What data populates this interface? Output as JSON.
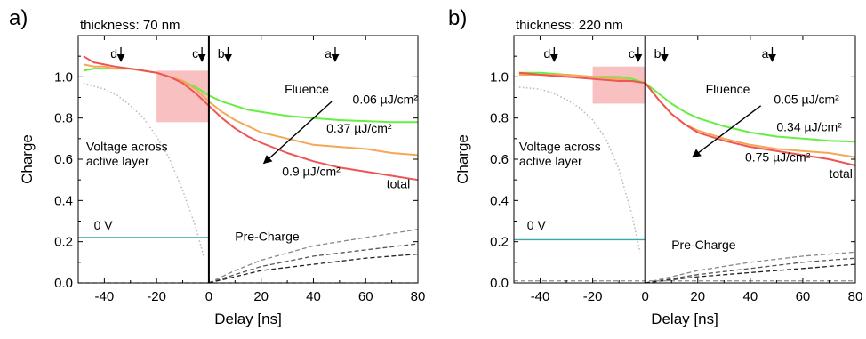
{
  "chart_data": [
    {
      "type": "line",
      "panel_label": "a)",
      "title": "thickness: 70 nm",
      "xlabel": "Delay [ns]",
      "ylabel": "Charge",
      "xlim": [
        -50,
        80
      ],
      "ylim": [
        0,
        1.2
      ],
      "xticks": [
        -40,
        -20,
        0,
        20,
        40,
        60,
        80
      ],
      "xtick_labels": [
        "-40",
        "-20",
        "0",
        "20",
        "40",
        "60",
        "80"
      ],
      "yticks": [
        0.0,
        0.2,
        0.4,
        0.6,
        0.8,
        1.0
      ],
      "ytick_labels": [
        "0.0",
        "0.2",
        "0.4",
        "0.6",
        "0.8",
        "1.0"
      ],
      "grid": false,
      "colors": {
        "low": "#66ee44",
        "mid": "#f5a755",
        "high": "#ee5555",
        "voltage": "#3aa8a8",
        "precharge": "#444444",
        "vline": "#000000",
        "highlight": "#f7b5b5"
      },
      "highlight_box": {
        "x0": -20,
        "x1": 0,
        "y0": 0.78,
        "y1": 1.03
      },
      "markers": [
        {
          "label": "d",
          "x": -34
        },
        {
          "label": "c",
          "x": -3
        },
        {
          "label": "b",
          "x": 7
        },
        {
          "label": "a",
          "x": 48
        }
      ],
      "series": [
        {
          "name": "0.06 µJ/cm²",
          "color": "#66ee44",
          "style": "solid",
          "x": [
            -48,
            -44,
            -40,
            -36,
            -30,
            -25,
            -20,
            -15,
            -10,
            -5,
            0,
            5,
            10,
            15,
            20,
            30,
            40,
            50,
            60,
            70,
            80
          ],
          "y": [
            1.03,
            1.04,
            1.04,
            1.04,
            1.04,
            1.03,
            1.02,
            1.0,
            0.98,
            0.95,
            0.91,
            0.88,
            0.86,
            0.84,
            0.83,
            0.81,
            0.8,
            0.79,
            0.785,
            0.78,
            0.78
          ]
        },
        {
          "name": "0.37 µJ/cm²",
          "color": "#f5a755",
          "style": "solid",
          "x": [
            -48,
            -44,
            -40,
            -36,
            -30,
            -25,
            -20,
            -15,
            -10,
            -5,
            0,
            5,
            10,
            15,
            20,
            30,
            40,
            50,
            60,
            70,
            80
          ],
          "y": [
            1.06,
            1.05,
            1.05,
            1.04,
            1.04,
            1.03,
            1.02,
            1.0,
            0.98,
            0.94,
            0.88,
            0.83,
            0.79,
            0.76,
            0.73,
            0.7,
            0.67,
            0.66,
            0.65,
            0.63,
            0.62
          ]
        },
        {
          "name": "0.9 µJ/cm²",
          "color": "#ee5555",
          "style": "solid",
          "x": [
            -48,
            -44,
            -40,
            -36,
            -30,
            -25,
            -20,
            -15,
            -10,
            -5,
            0,
            5,
            10,
            15,
            20,
            30,
            40,
            50,
            60,
            70,
            80
          ],
          "y": [
            1.1,
            1.07,
            1.06,
            1.05,
            1.04,
            1.03,
            1.02,
            1.0,
            0.97,
            0.92,
            0.86,
            0.8,
            0.75,
            0.71,
            0.68,
            0.63,
            0.59,
            0.56,
            0.54,
            0.52,
            0.5
          ]
        },
        {
          "name": "Voltage across active layer",
          "color": "#bbbbbb",
          "style": "dotted",
          "x": [
            -48,
            -40,
            -35,
            -30,
            -25,
            -20,
            -15,
            -10,
            -5,
            -2
          ],
          "y": [
            0.97,
            0.94,
            0.91,
            0.86,
            0.8,
            0.71,
            0.6,
            0.45,
            0.27,
            0.13
          ]
        },
        {
          "name": "0 V",
          "color": "#3aa8a8",
          "style": "solid",
          "x": [
            -50,
            0
          ],
          "y": [
            0.22,
            0.22
          ]
        },
        {
          "name": "Pre-Charge",
          "color": "#888888",
          "style": "dashed",
          "x": [
            0,
            10,
            20,
            40,
            60,
            80
          ],
          "y": [
            0.0,
            0.06,
            0.11,
            0.18,
            0.22,
            0.26
          ]
        },
        {
          "name": "",
          "color": "#555555",
          "style": "dashed",
          "x": [
            0,
            10,
            20,
            40,
            60,
            80
          ],
          "y": [
            0.0,
            0.04,
            0.08,
            0.13,
            0.16,
            0.19
          ]
        },
        {
          "name": "",
          "color": "#222222",
          "style": "dashed",
          "x": [
            0,
            10,
            20,
            40,
            60,
            80
          ],
          "y": [
            0.0,
            0.03,
            0.06,
            0.09,
            0.12,
            0.14
          ]
        },
        {
          "name": "",
          "color": "#999999",
          "style": "dashed",
          "x": [
            -50,
            80
          ],
          "y": [
            0.0,
            0.0
          ]
        }
      ],
      "annotations": [
        {
          "text": "Fluence",
          "x": 29,
          "y": 0.92
        },
        {
          "text": "0.06 µJ/cm²",
          "x": 55,
          "y": 0.87
        },
        {
          "text": "0.37 µJ/cm²",
          "x": 45,
          "y": 0.73
        },
        {
          "text": "0.9 µJ/cm²",
          "x": 28,
          "y": 0.52
        },
        {
          "text": "total",
          "x": 68,
          "y": 0.46
        },
        {
          "text": "Voltage across",
          "x": -47,
          "y": 0.64
        },
        {
          "text": "active layer",
          "x": -47,
          "y": 0.57
        },
        {
          "text": "0 V",
          "x": -44,
          "y": 0.26
        },
        {
          "text": "Pre-Charge",
          "x": 10,
          "y": 0.205
        }
      ],
      "arrow": {
        "from": [
          47,
          0.88
        ],
        "to": [
          21,
          0.58
        ]
      }
    },
    {
      "type": "line",
      "panel_label": "b)",
      "title": "thickness: 220 nm",
      "xlabel": "Delay [ns]",
      "ylabel": "Charge",
      "xlim": [
        -50,
        80
      ],
      "ylim": [
        0,
        1.2
      ],
      "xticks": [
        -40,
        -20,
        0,
        20,
        40,
        60,
        80
      ],
      "xtick_labels": [
        "-40",
        "-20",
        "0",
        "20",
        "40",
        "60",
        "80"
      ],
      "yticks": [
        0.0,
        0.2,
        0.4,
        0.6,
        0.8,
        1.0
      ],
      "ytick_labels": [
        "0.0",
        "0.2",
        "0.4",
        "0.6",
        "0.8",
        "1.0"
      ],
      "grid": false,
      "colors": {
        "low": "#66ee44",
        "mid": "#f5a755",
        "high": "#ee5555",
        "voltage": "#3aa8a8",
        "precharge": "#444444",
        "vline": "#000000",
        "highlight": "#f7b5b5"
      },
      "highlight_box": {
        "x0": -20,
        "x1": 0,
        "y0": 0.87,
        "y1": 1.05
      },
      "markers": [
        {
          "label": "d",
          "x": -35
        },
        {
          "label": "c",
          "x": -3
        },
        {
          "label": "b",
          "x": 7
        },
        {
          "label": "a",
          "x": 48
        }
      ],
      "series": [
        {
          "name": "0.05 µJ/cm²",
          "color": "#66ee44",
          "style": "solid",
          "x": [
            -48,
            -40,
            -30,
            -20,
            -10,
            -5,
            0,
            5,
            10,
            15,
            20,
            30,
            40,
            50,
            60,
            70,
            80
          ],
          "y": [
            1.02,
            1.02,
            1.01,
            1.0,
            1.0,
            0.99,
            0.97,
            0.92,
            0.87,
            0.83,
            0.8,
            0.76,
            0.73,
            0.71,
            0.7,
            0.69,
            0.685
          ]
        },
        {
          "name": "0.34 µJ/cm²",
          "color": "#f5a755",
          "style": "solid",
          "x": [
            -48,
            -40,
            -30,
            -20,
            -10,
            -5,
            0,
            5,
            10,
            15,
            20,
            30,
            40,
            50,
            60,
            70,
            80
          ],
          "y": [
            1.01,
            1.01,
            1.01,
            1.0,
            0.99,
            0.98,
            0.97,
            0.89,
            0.82,
            0.77,
            0.74,
            0.7,
            0.67,
            0.65,
            0.64,
            0.63,
            0.61
          ]
        },
        {
          "name": "0.75 µJ/cm²",
          "color": "#ee5555",
          "style": "solid",
          "x": [
            -48,
            -40,
            -30,
            -20,
            -10,
            -5,
            0,
            5,
            10,
            15,
            20,
            30,
            40,
            50,
            60,
            70,
            80
          ],
          "y": [
            1.02,
            1.01,
            1.0,
            0.99,
            0.98,
            0.98,
            0.97,
            0.89,
            0.82,
            0.77,
            0.73,
            0.69,
            0.66,
            0.64,
            0.62,
            0.6,
            0.57
          ]
        },
        {
          "name": "Voltage across active layer",
          "color": "#bbbbbb",
          "style": "dotted",
          "x": [
            -48,
            -40,
            -35,
            -30,
            -25,
            -20,
            -15,
            -10,
            -5,
            -2
          ],
          "y": [
            0.95,
            0.94,
            0.92,
            0.89,
            0.85,
            0.79,
            0.7,
            0.55,
            0.33,
            0.15
          ]
        },
        {
          "name": "0 V",
          "color": "#3aa8a8",
          "style": "solid",
          "x": [
            -50,
            0
          ],
          "y": [
            0.21,
            0.21
          ]
        },
        {
          "name": "Pre-Charge",
          "color": "#888888",
          "style": "dashed",
          "x": [
            0,
            10,
            20,
            40,
            60,
            80
          ],
          "y": [
            0.0,
            0.03,
            0.06,
            0.1,
            0.13,
            0.15
          ]
        },
        {
          "name": "",
          "color": "#555555",
          "style": "dashed",
          "x": [
            0,
            10,
            20,
            40,
            60,
            80
          ],
          "y": [
            0.0,
            0.02,
            0.04,
            0.07,
            0.1,
            0.12
          ]
        },
        {
          "name": "",
          "color": "#222222",
          "style": "dashed",
          "x": [
            0,
            10,
            20,
            40,
            60,
            80
          ],
          "y": [
            0.0,
            0.015,
            0.03,
            0.05,
            0.07,
            0.09
          ]
        },
        {
          "name": "",
          "color": "#999999",
          "style": "dashed",
          "x": [
            -50,
            80
          ],
          "y": [
            0.01,
            0.01
          ]
        }
      ],
      "annotations": [
        {
          "text": "Fluence",
          "x": 23,
          "y": 0.92
        },
        {
          "text": "0.05 µJ/cm²",
          "x": 49,
          "y": 0.87
        },
        {
          "text": "0.34 µJ/cm²",
          "x": 50,
          "y": 0.735
        },
        {
          "text": "0.75 µJ/cm²",
          "x": 38,
          "y": 0.59
        },
        {
          "text": "total",
          "x": 70,
          "y": 0.51
        },
        {
          "text": "Voltage across",
          "x": -48,
          "y": 0.64
        },
        {
          "text": "active layer",
          "x": -48,
          "y": 0.57
        },
        {
          "text": "0 V",
          "x": -45,
          "y": 0.26
        },
        {
          "text": "Pre-Charge",
          "x": 10,
          "y": 0.165
        }
      ],
      "arrow": {
        "from": [
          44,
          0.86
        ],
        "to": [
          18,
          0.61
        ]
      }
    }
  ]
}
